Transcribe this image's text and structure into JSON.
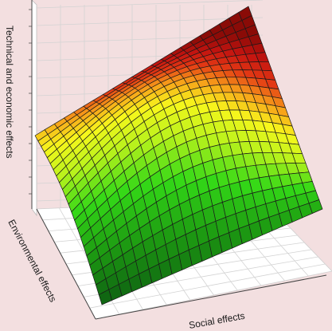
{
  "chart_data": {
    "type": "surface",
    "xlabel": "Social effects",
    "ylabel": "Environmental effects",
    "zlabel": "Technical and economic effects",
    "grid": true,
    "colormap": [
      "#0e5f12",
      "#1d9a12",
      "#33d817",
      "#b9f21c",
      "#f7f71c",
      "#f7a01a",
      "#e43a14",
      "#c41410",
      "#8a0b07"
    ],
    "surface_shape": "concave-down saddle-like surface rising toward high social and environmental effects"
  }
}
